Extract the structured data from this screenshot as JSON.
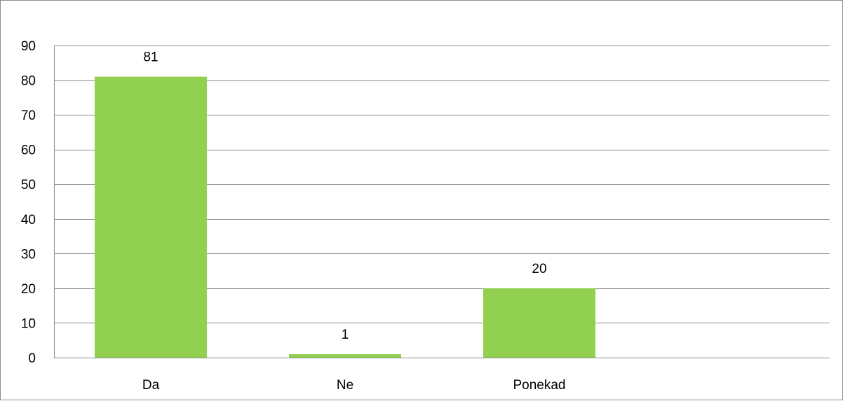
{
  "chart_data": {
    "type": "bar",
    "categories": [
      "Da",
      "Ne",
      "Ponekad"
    ],
    "values": [
      81,
      1,
      20
    ],
    "data_labels": [
      "81",
      "1",
      "20"
    ],
    "ylim": [
      0,
      90
    ],
    "yticks": [
      0,
      10,
      20,
      30,
      40,
      50,
      60,
      70,
      80,
      90
    ],
    "grid": true,
    "legend": "none",
    "title": "",
    "xlabel": "",
    "ylabel": "",
    "bar_color": "#92d050"
  }
}
